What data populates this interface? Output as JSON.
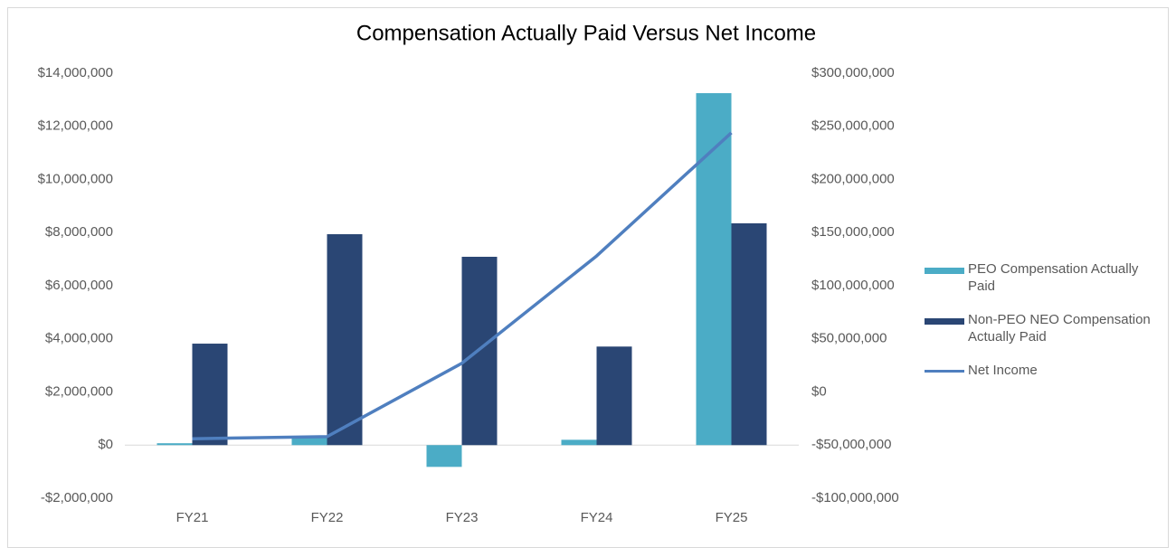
{
  "chart_data": {
    "type": "bar",
    "title": "Compensation Actually Paid Versus Net Income",
    "categories": [
      "FY21",
      "FY22",
      "FY23",
      "FY24",
      "FY25"
    ],
    "series": [
      {
        "name": "PEO Compensation Actually Paid",
        "type": "bar",
        "color": "#4bacc6",
        "values": [
          70000,
          270000,
          -820000,
          200000,
          13250000
        ]
      },
      {
        "name": "Non-PEO NEO Compensation Actually Paid",
        "type": "bar",
        "color": "#2a4674",
        "values": [
          3820000,
          7940000,
          7090000,
          3710000,
          8350000
        ]
      },
      {
        "name": "Net Income",
        "type": "line",
        "axis": "y2",
        "color": "#4f7fbf",
        "values": [
          -44000000,
          -42000000,
          27000000,
          128000000,
          244000000
        ]
      }
    ],
    "ylim": [
      -2000000,
      14000000
    ],
    "yticks": [
      {
        "value": -2000000,
        "label": "-$2,000,000"
      },
      {
        "value": 0,
        "label": "$0"
      },
      {
        "value": 2000000,
        "label": "$2,000,000"
      },
      {
        "value": 4000000,
        "label": "$4,000,000"
      },
      {
        "value": 6000000,
        "label": "$6,000,000"
      },
      {
        "value": 8000000,
        "label": "$8,000,000"
      },
      {
        "value": 10000000,
        "label": "$10,000,000"
      },
      {
        "value": 12000000,
        "label": "$12,000,000"
      },
      {
        "value": 14000000,
        "label": "$14,000,000"
      }
    ],
    "y2lim": [
      -100000000,
      300000000
    ],
    "y2ticks": [
      {
        "value": -100000000,
        "label": "-$100,000,000"
      },
      {
        "value": -50000000,
        "label": "-$50,000,000"
      },
      {
        "value": 0,
        "label": "$0"
      },
      {
        "value": 50000000,
        "label": "$50,000,000"
      },
      {
        "value": 100000000,
        "label": "$100,000,000"
      },
      {
        "value": 150000000,
        "label": "$150,000,000"
      },
      {
        "value": 200000000,
        "label": "$200,000,000"
      },
      {
        "value": 250000000,
        "label": "$250,000,000"
      },
      {
        "value": 300000000,
        "label": "$300,000,000"
      }
    ],
    "legend": "right"
  }
}
